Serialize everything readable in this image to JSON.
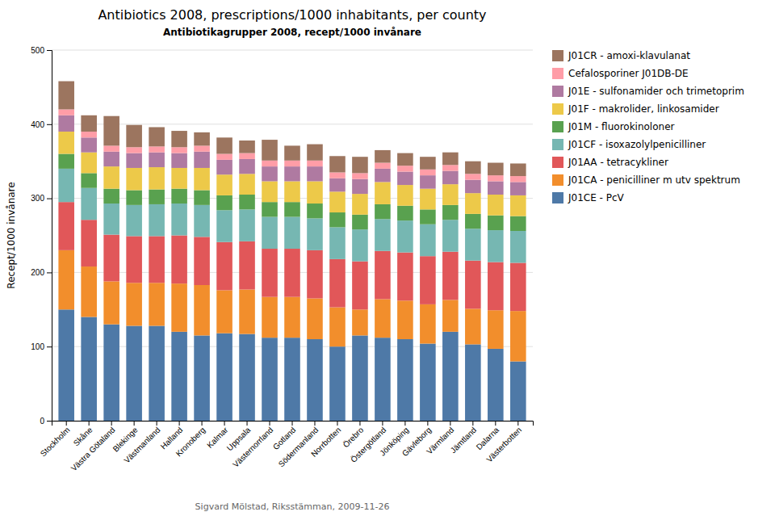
{
  "chart_data": {
    "type": "bar",
    "stacked": true,
    "title": "Antibiotics 2008, prescriptions/1000 inhabitants, per county",
    "subtitle": "Antibiotikagrupper 2008, recept/1000 invånare",
    "ylabel": "Recept/1000 invånare",
    "footnote": "Sigvard Mölstad, Riksstämman, 2009-11-26",
    "ylim": [
      0,
      500
    ],
    "yticks": [
      0,
      100,
      200,
      300,
      400,
      500
    ],
    "grid": true,
    "legend": "right",
    "categories": [
      "Stockholm",
      "Skåne",
      "Västra Götaland",
      "Blekinge",
      "Västmanland",
      "Halland",
      "Kronoberg",
      "Kalmar",
      "Uppsala",
      "Västernorrland",
      "Gotland",
      "Södermanland",
      "Norrbotten",
      "Örebro",
      "Östergötland",
      "Jönköping",
      "Gävleborg",
      "Värmland",
      "Jämtland",
      "Dalarna",
      "Västerbotten"
    ],
    "series": [
      {
        "name": "J01CE - PcV",
        "values": [
          150,
          140,
          130,
          128,
          128,
          120,
          115,
          118,
          117,
          112,
          112,
          110,
          100,
          115,
          112,
          110,
          104,
          120,
          103,
          97,
          80
        ]
      },
      {
        "name": "J01CA - penicilliner m utv spektrum",
        "values": [
          80,
          68,
          58,
          58,
          58,
          65,
          68,
          58,
          60,
          55,
          55,
          55,
          53,
          35,
          52,
          52,
          53,
          43,
          48,
          52,
          68
        ]
      },
      {
        "name": "J01AA - tetracykliner",
        "values": [
          65,
          63,
          63,
          63,
          63,
          65,
          65,
          65,
          65,
          65,
          65,
          65,
          65,
          65,
          65,
          65,
          65,
          65,
          65,
          65,
          65
        ]
      },
      {
        "name": "J01CF - isoxazolylpenicilliner",
        "values": [
          45,
          43,
          42,
          42,
          43,
          43,
          43,
          43,
          43,
          43,
          43,
          43,
          43,
          43,
          43,
          43,
          43,
          43,
          43,
          43,
          43
        ]
      },
      {
        "name": "J01M - fluorokinoloner",
        "values": [
          20,
          20,
          20,
          20,
          20,
          20,
          20,
          20,
          20,
          20,
          20,
          20,
          20,
          20,
          20,
          20,
          20,
          20,
          20,
          20,
          20
        ]
      },
      {
        "name": "J01F - makrolider, linkosamider",
        "values": [
          30,
          28,
          30,
          30,
          30,
          28,
          30,
          28,
          28,
          28,
          28,
          30,
          28,
          28,
          30,
          28,
          28,
          28,
          28,
          28,
          28
        ]
      },
      {
        "name": "J01E - sulfonamider och trimetoprim",
        "values": [
          22,
          20,
          20,
          20,
          20,
          20,
          22,
          20,
          20,
          20,
          20,
          20,
          18,
          20,
          18,
          18,
          18,
          18,
          18,
          18,
          18
        ]
      },
      {
        "name": "Cefalosporiner J01DB-DE",
        "values": [
          8,
          8,
          8,
          8,
          8,
          8,
          8,
          8,
          8,
          8,
          8,
          8,
          8,
          8,
          8,
          8,
          8,
          8,
          8,
          8,
          8
        ]
      },
      {
        "name": "J01CR - amoxi-klavulanat",
        "values": [
          38,
          22,
          40,
          30,
          26,
          22,
          18,
          22,
          17,
          28,
          20,
          22,
          22,
          22,
          17,
          17,
          17,
          17,
          17,
          17,
          17
        ]
      }
    ]
  }
}
